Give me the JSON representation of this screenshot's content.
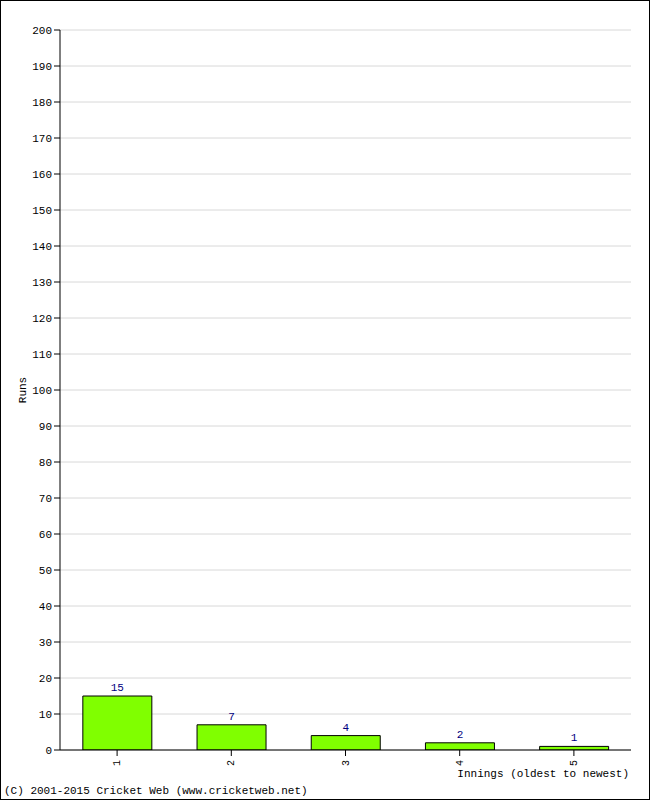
{
  "chart_data": {
    "type": "bar",
    "categories": [
      "1",
      "2",
      "3",
      "4",
      "5"
    ],
    "values": [
      15,
      7,
      4,
      2,
      1
    ],
    "color": "#80ff00",
    "ylim": [
      0,
      200
    ],
    "yticks": [
      0,
      10,
      20,
      30,
      40,
      50,
      60,
      70,
      80,
      90,
      100,
      110,
      120,
      130,
      140,
      150,
      160,
      170,
      180,
      190,
      200
    ],
    "grid": true,
    "data_labels": true,
    "y_label": "Runs",
    "x_label": "Innings (oldest to newest)",
    "credit": "(C) 2001-2015 Cricket Web (www.cricketweb.net)"
  }
}
